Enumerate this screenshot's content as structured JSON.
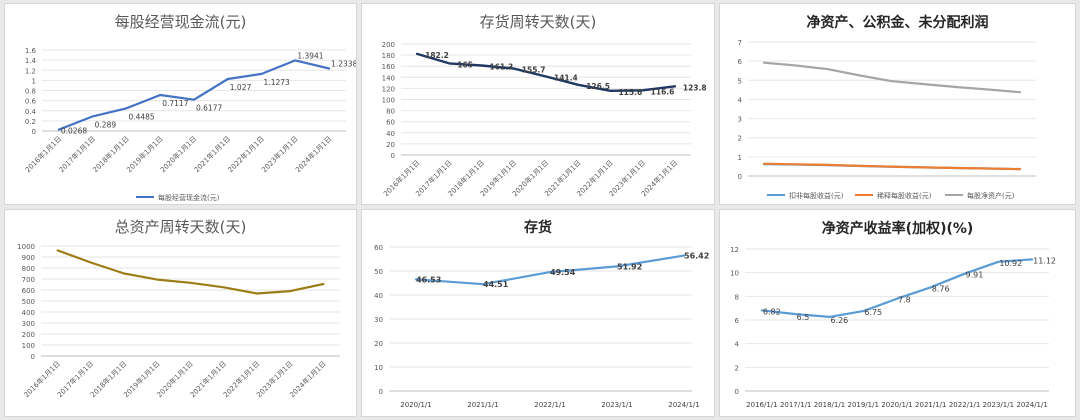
{
  "panels": [
    {
      "title": "每股经营现金流(元)",
      "chart_data": {
        "type": "line",
        "categories": [
          "2016年1月1日",
          "2017年1月1日",
          "2018年1月1日",
          "2019年1月1日",
          "2020年1月1日",
          "2021年1月1日",
          "2022年1月1日",
          "2023年1月1日",
          "2024年1月1日"
        ],
        "yticks": [
          "0",
          "0.2",
          "0.4",
          "0.6",
          "0.8",
          "1",
          "1.2",
          "1.4",
          "1.6"
        ],
        "ylim": [
          0,
          1.6
        ],
        "series": [
          {
            "name": "每股经营现金流(元)",
            "color": "#4472c4",
            "values": [
              0.0268,
              0.289,
              0.4485,
              0.7117,
              0.6177,
              1.027,
              1.1273,
              1.3941,
              1.2338
            ],
            "labels": [
              "0.0268",
              "0.289",
              "0.4485",
              "0.7117",
              "0.6177",
              "1.027",
              "1.1273",
              "1.3941",
              "1.2338"
            ]
          }
        ],
        "legend_position": "bottom"
      }
    },
    {
      "title": "存货周转天数(天)",
      "chart_data": {
        "type": "line",
        "categories": [
          "2016年1月1日",
          "2017年1月1日",
          "2018年1月1日",
          "2019年1月1日",
          "2020年1月1日",
          "2021年1月1日",
          "2022年1月1日",
          "2023年1月1日",
          "2024年1月1日"
        ],
        "yticks": [
          "0",
          "20",
          "40",
          "60",
          "80",
          "100",
          "120",
          "140",
          "160",
          "180",
          "200"
        ],
        "ylim": [
          0,
          200
        ],
        "series": [
          {
            "name": "",
            "color": "#203864",
            "values": [
              182.2,
              165,
              161.3,
              155.7,
              141.4,
              126.5,
              115.6,
              116.6,
              123.8
            ],
            "labels": [
              "182.2",
              "165",
              "161.3",
              "155.7",
              "141.4",
              "126.5",
              "115.6",
              "116.6",
              "123.8"
            ]
          }
        ]
      }
    },
    {
      "title": "净资产、公积金、未分配利润",
      "chart_data": {
        "type": "line",
        "categories": [
          "",
          "",
          "",
          "",
          "",
          "",
          "",
          "",
          ""
        ],
        "yticks": [
          "0",
          "1",
          "2",
          "3",
          "4",
          "5",
          "6",
          "7"
        ],
        "ylim": [
          0,
          7
        ],
        "series": [
          {
            "name": "扣非每股收益(元)",
            "color": "#5b9bd5",
            "values": [
              0.62,
              0.6,
              0.57,
              0.52,
              0.48,
              0.45,
              0.42,
              0.39,
              0.36
            ]
          },
          {
            "name": "稀释每股收益(元)",
            "color": "#ed7d31",
            "values": [
              0.64,
              0.61,
              0.58,
              0.53,
              0.49,
              0.45,
              0.42,
              0.39,
              0.36
            ]
          },
          {
            "name": "每股净资产(元)",
            "color": "#a5a5a5",
            "values": [
              5.92,
              5.77,
              5.58,
              5.25,
              4.95,
              4.8,
              4.65,
              4.52,
              4.38
            ]
          }
        ],
        "legend_position": "bottom"
      }
    },
    {
      "title": "总资产周转天数(天)",
      "chart_data": {
        "type": "line",
        "categories": [
          "2016年1月1日",
          "2017年1月1日",
          "2018年1月1日",
          "2019年1月1日",
          "2020年1月1日",
          "2021年1月1日",
          "2022年1月1日",
          "2023年1月1日",
          "2024年1月1日"
        ],
        "yticks": [
          "0",
          "100",
          "200",
          "300",
          "400",
          "500",
          "600",
          "700",
          "800",
          "900",
          "1000"
        ],
        "ylim": [
          0,
          1000
        ],
        "series": [
          {
            "name": "",
            "color": "#9c7c16",
            "values": [
              960,
              850,
              750,
              695,
              665,
              625,
              568,
              590,
              655
            ]
          }
        ]
      }
    },
    {
      "title": "存货",
      "chart_data": {
        "type": "line",
        "categories": [
          "2020/1/1",
          "2021/1/1",
          "2022/1/1",
          "2023/1/1",
          "2024/1/1"
        ],
        "yticks": [
          "0",
          "10",
          "20",
          "30",
          "40",
          "50",
          "60"
        ],
        "ylim": [
          0,
          60
        ],
        "series": [
          {
            "name": "",
            "color": "#5b9bd5",
            "values": [
              46.53,
              44.51,
              49.54,
              51.92,
              56.42
            ],
            "labels": [
              "46.53",
              "44.51",
              "49.54",
              "51.92",
              "56.42"
            ]
          }
        ]
      }
    },
    {
      "title": "净资产收益率(加权)(%)",
      "chart_data": {
        "type": "line",
        "categories": [
          "2016/1/1",
          "2017/1/1",
          "2018/1/1",
          "2019/1/1",
          "2020/1/1",
          "2021/1/1",
          "2022/1/1",
          "2023/1/1",
          "2024/1/1"
        ],
        "yticks": [
          "0",
          "2",
          "4",
          "6",
          "8",
          "10",
          "12"
        ],
        "ylim": [
          0,
          12
        ],
        "series": [
          {
            "name": "",
            "color": "#5b9bd5",
            "values": [
              6.82,
              6.5,
              6.26,
              6.75,
              7.8,
              8.76,
              9.91,
              10.92,
              11.12
            ],
            "labels": [
              "6.82",
              "6.5",
              "6.26",
              "6.75",
              "7.8",
              "8.76",
              "9.91",
              "10.92",
              "11.12"
            ]
          }
        ]
      }
    }
  ]
}
